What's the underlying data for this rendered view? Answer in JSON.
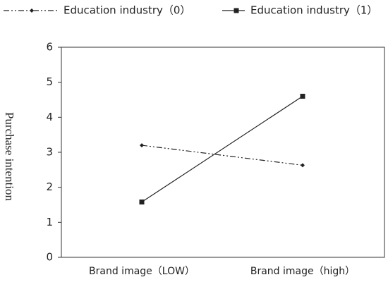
{
  "chart_data": {
    "type": "line",
    "y_label": "Purchase intention",
    "categories": [
      "Brand image（LOW）",
      "Brand image（high）"
    ],
    "series": [
      {
        "name": "Education industry（0）",
        "color": "#222222",
        "values": [
          3.2,
          2.63
        ],
        "line_style": "dashdot",
        "marker": "diamond"
      },
      {
        "name": "Education industry（1）",
        "color": "#222222",
        "values": [
          1.58,
          4.6
        ],
        "line_style": "solid",
        "marker": "square"
      }
    ],
    "ylim": [
      0,
      6
    ],
    "yticks": [
      0,
      1,
      2,
      3,
      4,
      5,
      6
    ],
    "grid": false
  }
}
